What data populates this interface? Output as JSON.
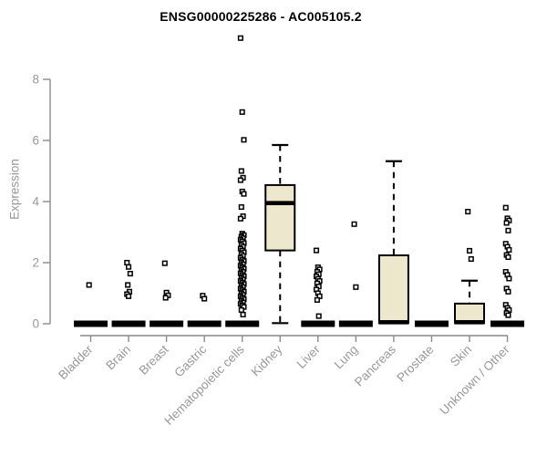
{
  "chart_data": {
    "type": "boxplot",
    "title": "ENSG00000225286 - AC005105.2",
    "ylabel": "Expression",
    "xlabel": "",
    "ylim": [
      0,
      9.4
    ],
    "yticks": [
      0,
      2,
      4,
      6,
      8
    ],
    "grid": false,
    "legend_position": "none",
    "colors": {
      "box_fill": "#EDE8CD",
      "box_stroke": "#000000",
      "median": "#000000",
      "whisker": "#000000",
      "outlier_fill": "#ffffff",
      "outlier_stroke": "#000000",
      "axis_line": "#8a8a8a",
      "tick_label": "#989898",
      "title": "#000000"
    },
    "categories": [
      "Bladder",
      "Brain",
      "Breast",
      "Gastric",
      "Hematopoietic cells",
      "Kidney",
      "Liver",
      "Lung",
      "Pancreas",
      "Prostate",
      "Skin",
      "Unknown / Other"
    ],
    "boxes": [
      {
        "category": "Bladder",
        "q1": 0,
        "median": 0,
        "q3": 0,
        "whisker_low": 0,
        "whisker_high": 0,
        "outliers": [
          1.27
        ]
      },
      {
        "category": "Brain",
        "q1": 0,
        "median": 0,
        "q3": 0,
        "whisker_low": 0,
        "whisker_high": 0,
        "outliers": [
          2.0,
          1.86,
          1.64,
          1.27,
          1.05,
          0.97,
          0.9
        ]
      },
      {
        "category": "Breast",
        "q1": 0,
        "median": 0,
        "q3": 0,
        "whisker_low": 0,
        "whisker_high": 0,
        "outliers": [
          1.98,
          1.02,
          0.93,
          0.85
        ]
      },
      {
        "category": "Gastric",
        "q1": 0,
        "median": 0,
        "q3": 0,
        "whisker_low": 0,
        "whisker_high": 0,
        "outliers": [
          0.92,
          0.82
        ]
      },
      {
        "category": "Hematopoietic cells",
        "q1": 0,
        "median": 0,
        "q3": 0,
        "whisker_low": 0,
        "whisker_high": 0,
        "outliers": [
          9.35,
          6.93,
          6.02,
          5.0,
          4.78,
          4.7,
          4.33,
          4.25,
          3.82,
          3.52,
          3.44,
          2.95,
          2.9,
          2.85,
          2.8,
          2.75,
          2.7,
          2.64,
          2.58,
          2.52,
          2.46,
          2.4,
          2.34,
          2.28,
          2.22,
          2.16,
          2.1,
          2.05,
          2.0,
          1.95,
          1.9,
          1.85,
          1.8,
          1.75,
          1.7,
          1.65,
          1.6,
          1.55,
          1.5,
          1.45,
          1.4,
          1.35,
          1.3,
          1.25,
          1.2,
          1.15,
          1.1,
          1.05,
          1.0,
          0.95,
          0.9,
          0.85,
          0.8,
          0.75,
          0.7,
          0.65,
          0.6,
          0.55,
          0.45,
          0.3
        ]
      },
      {
        "category": "Kidney",
        "q1": 2.4,
        "median": 3.95,
        "q3": 4.54,
        "whisker_low": 0.02,
        "whisker_high": 5.85,
        "outliers": []
      },
      {
        "category": "Liver",
        "q1": 0,
        "median": 0,
        "q3": 0,
        "whisker_low": 0,
        "whisker_high": 0,
        "outliers": [
          2.4,
          1.85,
          1.78,
          1.7,
          1.62,
          1.55,
          1.47,
          1.4,
          1.32,
          1.22,
          1.12,
          1.0,
          0.9,
          0.78,
          0.25
        ]
      },
      {
        "category": "Lung",
        "q1": 0,
        "median": 0,
        "q3": 0,
        "whisker_low": 0,
        "whisker_high": 0,
        "outliers": [
          3.26,
          1.2
        ]
      },
      {
        "category": "Pancreas",
        "q1": 0.02,
        "median": 0.05,
        "q3": 2.24,
        "whisker_low": 0.02,
        "whisker_high": 5.32,
        "outliers": []
      },
      {
        "category": "Prostate",
        "q1": 0,
        "median": 0,
        "q3": 0,
        "whisker_low": 0,
        "whisker_high": 0,
        "outliers": []
      },
      {
        "category": "Skin",
        "q1": 0.02,
        "median": 0.05,
        "q3": 0.66,
        "whisker_low": 0.02,
        "whisker_high": 1.41,
        "outliers": [
          3.67,
          2.39,
          2.12
        ]
      },
      {
        "category": "Unknown / Other",
        "q1": 0,
        "median": 0,
        "q3": 0,
        "whisker_low": 0,
        "whisker_high": 0,
        "outliers": [
          3.8,
          3.45,
          3.38,
          3.3,
          3.05,
          2.62,
          2.52,
          2.42,
          2.25,
          2.18,
          1.7,
          1.6,
          1.48,
          1.15,
          1.05,
          0.62,
          0.52,
          0.45,
          0.35,
          0.28
        ]
      }
    ]
  }
}
